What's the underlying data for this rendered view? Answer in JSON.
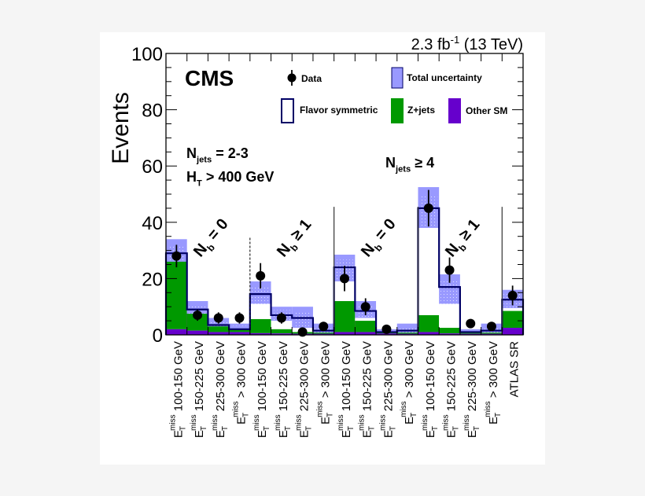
{
  "chart_data": {
    "type": "bar",
    "title": "",
    "lumi_label": "2.3 fb",
    "lumi_sup": "-1",
    "energy_label": " (13 TeV)",
    "experiment": "CMS",
    "xlabel": "",
    "ylabel": "Events",
    "ylim": [
      0,
      100
    ],
    "yticks": [
      0,
      20,
      40,
      60,
      80,
      100
    ],
    "grid": false,
    "legend_position": "top-right inside",
    "legend": [
      {
        "key": "data",
        "label": "Data",
        "style": "marker"
      },
      {
        "key": "unc",
        "label": "Total uncertainty",
        "style": "band",
        "color": "#9999ff"
      },
      {
        "key": "fs",
        "label": "Flavor symmetric",
        "style": "outline",
        "color": "#000066"
      },
      {
        "key": "z",
        "label": "Z+jets",
        "style": "fill",
        "color": "#009900"
      },
      {
        "key": "other",
        "label": "Other SM",
        "style": "fill",
        "color": "#6600cc"
      }
    ],
    "annotations": {
      "njets_low": {
        "main": "N",
        "sub": "jets",
        "rest": " = 2-3"
      },
      "ht_cut": {
        "main": "H",
        "sub": "T",
        "rest": " > 400 GeV"
      },
      "njets_high": {
        "main": "N",
        "sub": "jets",
        "rest": " ≥ 4"
      },
      "nb0_label": {
        "main": "N",
        "sub": "b",
        "rest": " = 0"
      },
      "nb1_label": {
        "main": "N",
        "sub": "b",
        "rest": " ≥ 1"
      }
    },
    "categories": [
      {
        "prefix": "E",
        "sub": "T",
        "sup": "miss",
        "range": " 100-150 GeV"
      },
      {
        "prefix": "E",
        "sub": "T",
        "sup": "miss",
        "range": " 150-225 GeV"
      },
      {
        "prefix": "E",
        "sub": "T",
        "sup": "miss",
        "range": " 225-300 GeV"
      },
      {
        "prefix": "E",
        "sub": "T",
        "sup": "miss",
        "range": " > 300 GeV"
      },
      {
        "prefix": "E",
        "sub": "T",
        "sup": "miss",
        "range": " 100-150 GeV"
      },
      {
        "prefix": "E",
        "sub": "T",
        "sup": "miss",
        "range": " 150-225 GeV"
      },
      {
        "prefix": "E",
        "sub": "T",
        "sup": "miss",
        "range": " 225-300 GeV"
      },
      {
        "prefix": "E",
        "sub": "T",
        "sup": "miss",
        "range": " > 300 GeV"
      },
      {
        "prefix": "E",
        "sub": "T",
        "sup": "miss",
        "range": " 100-150 GeV"
      },
      {
        "prefix": "E",
        "sub": "T",
        "sup": "miss",
        "range": " 150-225 GeV"
      },
      {
        "prefix": "E",
        "sub": "T",
        "sup": "miss",
        "range": " 225-300 GeV"
      },
      {
        "prefix": "E",
        "sub": "T",
        "sup": "miss",
        "range": " > 300 GeV"
      },
      {
        "prefix": "E",
        "sub": "T",
        "sup": "miss",
        "range": " 100-150 GeV"
      },
      {
        "prefix": "E",
        "sub": "T",
        "sup": "miss",
        "range": " 150-225 GeV"
      },
      {
        "prefix": "E",
        "sub": "T",
        "sup": "miss",
        "range": " 225-300 GeV"
      },
      {
        "prefix": "E",
        "sub": "T",
        "sup": "miss",
        "range": " > 300 GeV"
      },
      {
        "prefix": "",
        "sub": "",
        "sup": "",
        "range": "ATLAS SR"
      }
    ],
    "series": [
      {
        "name": "Flavor symmetric",
        "values": [
          29,
          9,
          3.5,
          2,
          14.5,
          7,
          6,
          1.5,
          24,
          8.5,
          1,
          1.5,
          45,
          17,
          1,
          1.5,
          12.5
        ]
      },
      {
        "name": "Z+jets",
        "values": [
          24,
          6,
          2,
          1,
          5,
          1.5,
          0.6,
          0.4,
          11,
          4,
          0.5,
          0.4,
          6,
          2,
          0.4,
          0.4,
          6
        ]
      },
      {
        "name": "Other SM",
        "values": [
          2,
          1.5,
          1,
          1,
          0.6,
          0.5,
          0.4,
          0.4,
          1,
          1,
          0.5,
          0.4,
          1,
          0.5,
          0.4,
          0.4,
          2.5
        ]
      },
      {
        "name": "Total uncertainty low",
        "values": [
          25,
          7,
          2,
          1,
          11,
          5,
          2.5,
          0.3,
          19,
          6,
          0.4,
          0.6,
          38,
          11,
          0.4,
          0.8,
          9.5
        ]
      },
      {
        "name": "Total uncertainty high",
        "values": [
          34,
          12,
          6,
          4,
          19,
          10,
          10,
          4,
          28.5,
          12,
          2,
          4,
          52.5,
          21.5,
          2,
          4,
          16
        ]
      },
      {
        "name": "Data",
        "values": [
          28,
          7,
          6,
          6,
          21,
          6,
          1,
          3,
          20,
          10,
          2,
          null,
          45,
          23,
          4,
          3,
          14
        ]
      },
      {
        "name": "Data error",
        "values": [
          4,
          2,
          2,
          2,
          4.5,
          2,
          1,
          1.5,
          4.5,
          3,
          1.5,
          null,
          6.5,
          4.5,
          1.5,
          1.3,
          3.5
        ]
      }
    ]
  },
  "colors": {
    "uncertainty": "#9999ff",
    "flavor_symmetric": "#000066",
    "zjets": "#009900",
    "other_sm": "#6600cc",
    "panel_bg": "#ffffff",
    "page_bg": "#f5f5f5"
  }
}
